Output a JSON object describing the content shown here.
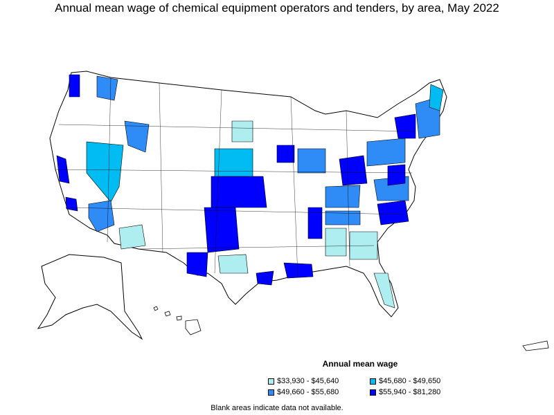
{
  "title": "Annual mean wage of chemical equipment operators and tenders, by area, May 2022",
  "legend": {
    "title": "Annual mean wage",
    "items": [
      {
        "label": "$33,930 - $45,640",
        "color": "#aeeef0"
      },
      {
        "label": "$45,680 - $49,650",
        "color": "#00bcf2"
      },
      {
        "label": "$49,660 - $55,680",
        "color": "#2f8bf5"
      },
      {
        "label": "$55,940 - $81,280",
        "color": "#0000ff"
      }
    ]
  },
  "footnote": "Blank areas indicate data not available."
}
